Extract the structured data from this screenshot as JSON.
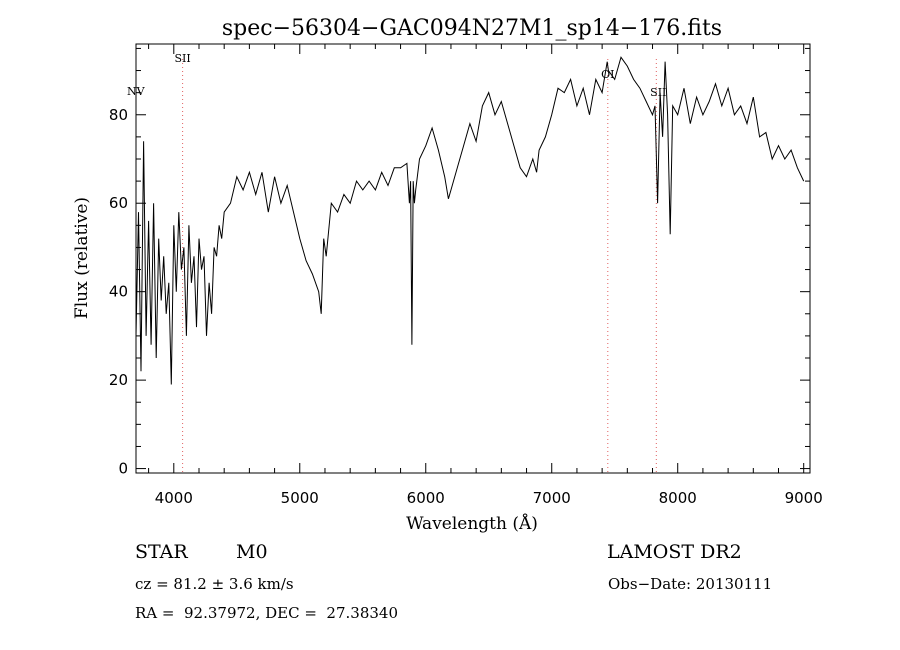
{
  "chart_data": {
    "type": "line",
    "title": "spec−56304−GAC094N27M1_sp14−176.fits",
    "xlabel": "Wavelength (Å)",
    "ylabel": "Flux (relative)",
    "xlim": [
      3700,
      9050
    ],
    "ylim": [
      -1,
      96
    ],
    "xticks": [
      4000,
      5000,
      6000,
      7000,
      8000,
      9000
    ],
    "yticks": [
      0,
      20,
      40,
      60,
      80
    ],
    "grid": false,
    "line_color": "#000000",
    "marker_color": "#e06060",
    "lines": [
      {
        "label": "NV",
        "wavelength": 3705
      },
      {
        "label": "SII",
        "wavelength": 4070
      },
      {
        "label": "OI",
        "wavelength": 7445
      },
      {
        "label": "SII",
        "wavelength": 7830
      }
    ],
    "x": [
      3700,
      3720,
      3740,
      3760,
      3780,
      3800,
      3820,
      3840,
      3860,
      3880,
      3900,
      3920,
      3940,
      3960,
      3980,
      4000,
      4020,
      4040,
      4060,
      4080,
      4100,
      4120,
      4140,
      4160,
      4180,
      4200,
      4220,
      4240,
      4260,
      4280,
      4300,
      4320,
      4340,
      4360,
      4380,
      4400,
      4450,
      4500,
      4550,
      4600,
      4650,
      4700,
      4750,
      4800,
      4850,
      4900,
      4950,
      5000,
      5050,
      5100,
      5150,
      5170,
      5190,
      5210,
      5250,
      5300,
      5350,
      5400,
      5450,
      5500,
      5550,
      5600,
      5650,
      5700,
      5750,
      5800,
      5850,
      5870,
      5880,
      5890,
      5900,
      5910,
      5920,
      5950,
      6000,
      6050,
      6100,
      6150,
      6180,
      6200,
      6250,
      6300,
      6350,
      6400,
      6450,
      6500,
      6550,
      6600,
      6650,
      6700,
      6750,
      6800,
      6850,
      6880,
      6900,
      6950,
      7000,
      7050,
      7100,
      7150,
      7200,
      7250,
      7300,
      7350,
      7400,
      7440,
      7450,
      7500,
      7550,
      7600,
      7650,
      7700,
      7750,
      7800,
      7820,
      7840,
      7860,
      7880,
      7900,
      7920,
      7940,
      7960,
      8000,
      8050,
      8100,
      8150,
      8200,
      8250,
      8300,
      8350,
      8400,
      8450,
      8500,
      8550,
      8600,
      8650,
      8700,
      8750,
      8800,
      8850,
      8900,
      8950,
      9000
    ],
    "y": [
      30,
      58,
      22,
      74,
      30,
      56,
      28,
      60,
      25,
      52,
      38,
      48,
      35,
      42,
      19,
      55,
      40,
      58,
      45,
      50,
      30,
      55,
      42,
      48,
      32,
      52,
      45,
      48,
      30,
      42,
      35,
      50,
      48,
      55,
      52,
      58,
      60,
      66,
      63,
      67,
      62,
      67,
      58,
      66,
      60,
      64,
      58,
      52,
      47,
      44,
      40,
      35,
      52,
      48,
      60,
      58,
      62,
      60,
      65,
      63,
      65,
      63,
      67,
      64,
      68,
      68,
      69,
      60,
      65,
      28,
      65,
      60,
      63,
      70,
      73,
      77,
      72,
      66,
      61,
      63,
      68,
      73,
      78,
      74,
      82,
      85,
      80,
      83,
      78,
      73,
      68,
      66,
      70,
      67,
      72,
      75,
      80,
      86,
      85,
      88,
      82,
      86,
      80,
      88,
      85,
      92,
      90,
      88,
      93,
      91,
      88,
      86,
      83,
      80,
      82,
      60,
      85,
      75,
      92,
      80,
      53,
      82,
      80,
      86,
      78,
      84,
      80,
      83,
      87,
      82,
      86,
      80,
      82,
      78,
      84,
      75,
      76,
      70,
      73,
      70,
      72,
      68,
      65
    ]
  },
  "info": {
    "object_type": "STAR",
    "subclass": "M0",
    "survey": "LAMOST DR2",
    "cz": "cz = 81.2 ± 3.6 km/s",
    "obs_date": "Obs−Date: 20130111",
    "coords": "RA =  92.37972, DEC =  27.38340"
  }
}
